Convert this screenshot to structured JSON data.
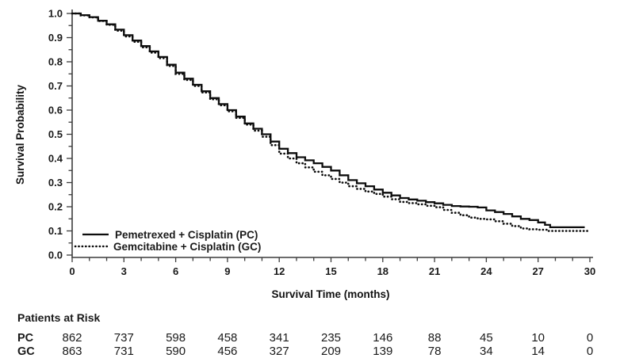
{
  "figure": {
    "y_axis_label": "Survival Probability",
    "x_axis_label": "Survival Time (months)",
    "legend": [
      {
        "label": "Pemetrexed + Cisplatin (PC)",
        "style": "solid"
      },
      {
        "label": "Gemcitabine + Cisplatin (GC)",
        "style": "dotted"
      }
    ],
    "risk_table": {
      "title": "Patients at Risk",
      "rows": [
        {
          "label": "PC",
          "values": [
            "862",
            "737",
            "598",
            "458",
            "341",
            "235",
            "146",
            "88",
            "45",
            "10",
            "0"
          ]
        },
        {
          "label": "GC",
          "values": [
            "863",
            "731",
            "590",
            "456",
            "327",
            "209",
            "139",
            "78",
            "34",
            "14",
            "0"
          ]
        }
      ]
    }
  },
  "chart_data": {
    "type": "line",
    "subtype": "kaplan-meier-step",
    "title": "",
    "xlabel": "Survival Time (months)",
    "ylabel": "Survival Probability",
    "xlim": [
      0,
      30
    ],
    "ylim": [
      0.0,
      1.0
    ],
    "grid": false,
    "legend_position": "lower-left-inside",
    "xticks": [
      0,
      3,
      6,
      9,
      12,
      15,
      18,
      21,
      24,
      27,
      30
    ],
    "xtick_minor_every": 1,
    "yticks": [
      0.0,
      0.1,
      0.2,
      0.3,
      0.4,
      0.5,
      0.6,
      0.7,
      0.8,
      0.9,
      1.0
    ],
    "ytick_labels": [
      "0.0",
      "0.1",
      "0.2",
      "0.3",
      "0.4",
      "0.5",
      "0.6",
      "0.7",
      "0.8",
      "0.9",
      "1.0"
    ],
    "ytick_minor_every": 0.05,
    "colors": {
      "line": "#0d0d0d",
      "text": "#1a1a1a",
      "axis": "#3c3c3c"
    },
    "series": [
      {
        "name": "Pemetrexed + Cisplatin (PC)",
        "line_style": "solid",
        "points": [
          [
            0,
            1.0
          ],
          [
            0.5,
            0.993
          ],
          [
            1,
            0.985
          ],
          [
            1.5,
            0.97
          ],
          [
            2,
            0.955
          ],
          [
            2.5,
            0.933
          ],
          [
            3,
            0.91
          ],
          [
            3.5,
            0.888
          ],
          [
            4,
            0.865
          ],
          [
            4.5,
            0.843
          ],
          [
            5,
            0.82
          ],
          [
            5.5,
            0.788
          ],
          [
            6,
            0.755
          ],
          [
            6.5,
            0.73
          ],
          [
            7,
            0.705
          ],
          [
            7.5,
            0.678
          ],
          [
            8,
            0.65
          ],
          [
            8.5,
            0.625
          ],
          [
            9,
            0.6
          ],
          [
            9.5,
            0.573
          ],
          [
            10,
            0.545
          ],
          [
            10.5,
            0.523
          ],
          [
            11,
            0.5
          ],
          [
            11.5,
            0.47
          ],
          [
            12,
            0.44
          ],
          [
            12.5,
            0.422
          ],
          [
            13,
            0.405
          ],
          [
            13.5,
            0.392
          ],
          [
            14,
            0.38
          ],
          [
            14.5,
            0.365
          ],
          [
            15,
            0.35
          ],
          [
            15.5,
            0.33
          ],
          [
            16,
            0.31
          ],
          [
            16.5,
            0.297
          ],
          [
            17,
            0.285
          ],
          [
            17.5,
            0.271
          ],
          [
            18,
            0.258
          ],
          [
            18.5,
            0.247
          ],
          [
            19,
            0.236
          ],
          [
            19.5,
            0.23
          ],
          [
            20,
            0.225
          ],
          [
            20.5,
            0.219
          ],
          [
            21,
            0.214
          ],
          [
            21.5,
            0.208
          ],
          [
            22,
            0.203
          ],
          [
            22.5,
            0.201
          ],
          [
            23,
            0.2
          ],
          [
            23.5,
            0.197
          ],
          [
            24,
            0.185
          ],
          [
            24.5,
            0.178
          ],
          [
            25,
            0.17
          ],
          [
            25.5,
            0.16
          ],
          [
            26,
            0.15
          ],
          [
            26.5,
            0.145
          ],
          [
            27,
            0.135
          ],
          [
            27.4,
            0.125
          ],
          [
            27.7,
            0.115
          ],
          [
            29.7,
            0.115
          ]
        ]
      },
      {
        "name": "Gemcitabine + Cisplatin (GC)",
        "line_style": "dotted",
        "points": [
          [
            0,
            1.0
          ],
          [
            0.5,
            0.992
          ],
          [
            1,
            0.984
          ],
          [
            1.5,
            0.969
          ],
          [
            2,
            0.953
          ],
          [
            2.5,
            0.929
          ],
          [
            3,
            0.905
          ],
          [
            3.5,
            0.883
          ],
          [
            4,
            0.86
          ],
          [
            4.5,
            0.838
          ],
          [
            5,
            0.815
          ],
          [
            5.5,
            0.783
          ],
          [
            6,
            0.75
          ],
          [
            6.5,
            0.725
          ],
          [
            7,
            0.7
          ],
          [
            7.5,
            0.673
          ],
          [
            8,
            0.645
          ],
          [
            8.5,
            0.62
          ],
          [
            9,
            0.595
          ],
          [
            9.5,
            0.568
          ],
          [
            10,
            0.54
          ],
          [
            10.5,
            0.515
          ],
          [
            11,
            0.49
          ],
          [
            11.5,
            0.455
          ],
          [
            12,
            0.42
          ],
          [
            12.5,
            0.4
          ],
          [
            13,
            0.38
          ],
          [
            13.5,
            0.363
          ],
          [
            14,
            0.345
          ],
          [
            14.5,
            0.33
          ],
          [
            15,
            0.315
          ],
          [
            15.5,
            0.3
          ],
          [
            16,
            0.285
          ],
          [
            16.5,
            0.274
          ],
          [
            17,
            0.263
          ],
          [
            17.5,
            0.253
          ],
          [
            18,
            0.242
          ],
          [
            18.5,
            0.231
          ],
          [
            19,
            0.22
          ],
          [
            19.5,
            0.215
          ],
          [
            20,
            0.21
          ],
          [
            20.5,
            0.204
          ],
          [
            21,
            0.198
          ],
          [
            21.5,
            0.187
          ],
          [
            22,
            0.175
          ],
          [
            22.5,
            0.165
          ],
          [
            23,
            0.155
          ],
          [
            23.5,
            0.15
          ],
          [
            24,
            0.148
          ],
          [
            24.5,
            0.14
          ],
          [
            25,
            0.13
          ],
          [
            25.5,
            0.12
          ],
          [
            26,
            0.11
          ],
          [
            26.5,
            0.107
          ],
          [
            27,
            0.105
          ],
          [
            27.5,
            0.1
          ],
          [
            30,
            0.1
          ]
        ]
      }
    ],
    "risk_table": {
      "title": "Patients at Risk",
      "time_points": [
        0,
        3,
        6,
        9,
        12,
        15,
        18,
        21,
        24,
        27,
        30
      ],
      "rows": [
        {
          "label": "PC",
          "values": [
            862,
            737,
            598,
            458,
            341,
            235,
            146,
            88,
            45,
            10,
            0
          ]
        },
        {
          "label": "GC",
          "values": [
            863,
            731,
            590,
            456,
            327,
            209,
            139,
            78,
            34,
            14,
            0
          ]
        }
      ]
    }
  }
}
